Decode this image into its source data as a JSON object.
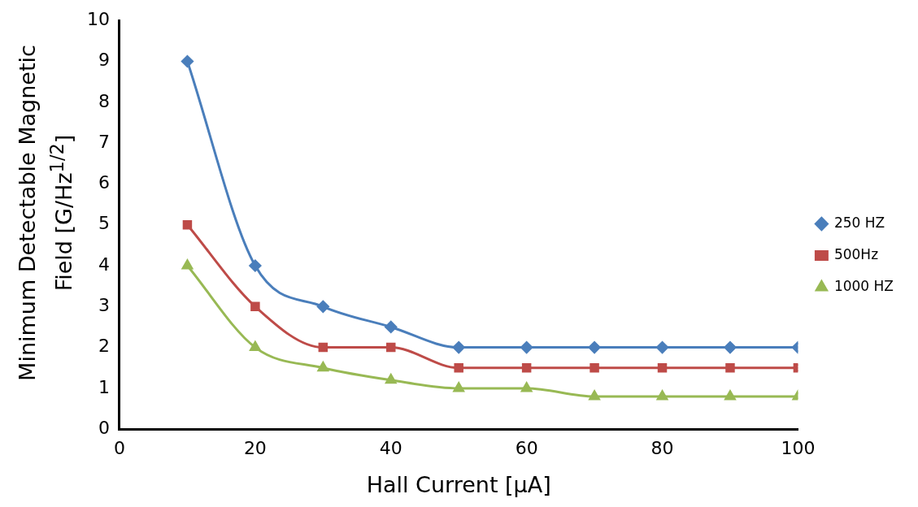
{
  "chart_data": {
    "type": "line",
    "xlabel": "Hall Current [μA]",
    "ylabel": "Minimum Detectable Magnetic Field [G/Hz$^{1/2}$]",
    "x": [
      10,
      20,
      30,
      40,
      50,
      60,
      70,
      80,
      90,
      100
    ],
    "series": [
      {
        "name": "250 HZ",
        "color": "#4a7ebb",
        "marker": "diamond",
        "values": [
          9,
          4,
          3,
          2.5,
          2,
          2,
          2,
          2,
          2,
          2
        ]
      },
      {
        "name": "500Hz",
        "color": "#be4b48",
        "marker": "square",
        "values": [
          5,
          3,
          2,
          2,
          1.5,
          1.5,
          1.5,
          1.5,
          1.5,
          1.5
        ]
      },
      {
        "name": "1000 HZ",
        "color": "#98b954",
        "marker": "triangle",
        "values": [
          4,
          2,
          1.5,
          1.2,
          1,
          1,
          0.8,
          0.8,
          0.8,
          0.8
        ]
      }
    ],
    "xlim": [
      0,
      100
    ],
    "xticks": [
      0,
      20,
      40,
      60,
      80,
      100
    ],
    "ylim": [
      0,
      10
    ],
    "yticks": [
      0,
      1,
      2,
      3,
      4,
      5,
      6,
      7,
      8,
      9,
      10
    ],
    "grid": false,
    "legend": "right",
    "line_style": "solid"
  }
}
